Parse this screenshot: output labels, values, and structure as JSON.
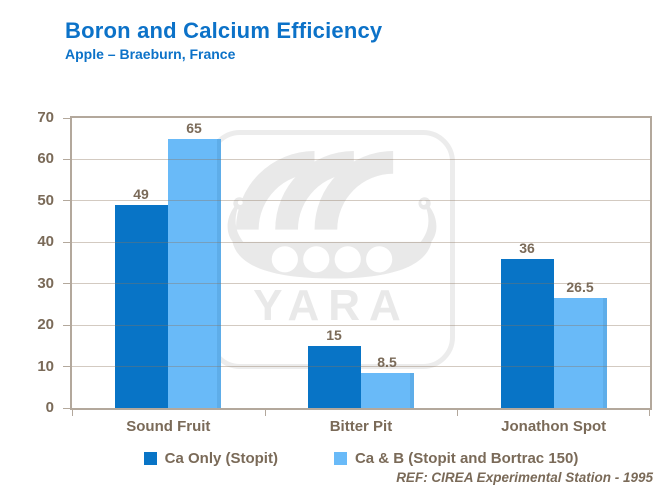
{
  "header": {
    "title": "Boron and Calcium Efficiency",
    "subtitle": "Apple – Braeburn, France"
  },
  "watermark": {
    "brand": "YARA",
    "icon": "yara-viking-ship-logo"
  },
  "footer": {
    "reference": "REF: CIREA Experimental Station - 1995"
  },
  "chart_data": {
    "type": "bar",
    "title": "Boron and Calcium Efficiency",
    "subtitle": "Apple – Braeburn, France",
    "categories": [
      "Sound Fruit",
      "Bitter Pit",
      "Jonathon Spot"
    ],
    "series": [
      {
        "name": "Ca Only (Stopit)",
        "color": "#0874C6",
        "values": [
          49,
          15,
          36
        ]
      },
      {
        "name": "Ca & B (Stopit and Bortrac 150)",
        "color": "#69BAF8",
        "values": [
          65,
          8.5,
          26.5
        ]
      }
    ],
    "ylim": [
      0,
      70
    ],
    "yticks": [
      0,
      10,
      20,
      30,
      40,
      50,
      60,
      70
    ],
    "xlabel": "",
    "ylabel": "",
    "grid": "horizontal",
    "legend_position": "bottom",
    "data_labels": true
  },
  "colors": {
    "title_blue": "#0C72C8",
    "axis_text": "#7A6A58",
    "plot_border": "#B3A89C",
    "gridline": "#CBBDAF",
    "watermark_gray": "#E9E9E9",
    "background": "#FFFFFF"
  }
}
